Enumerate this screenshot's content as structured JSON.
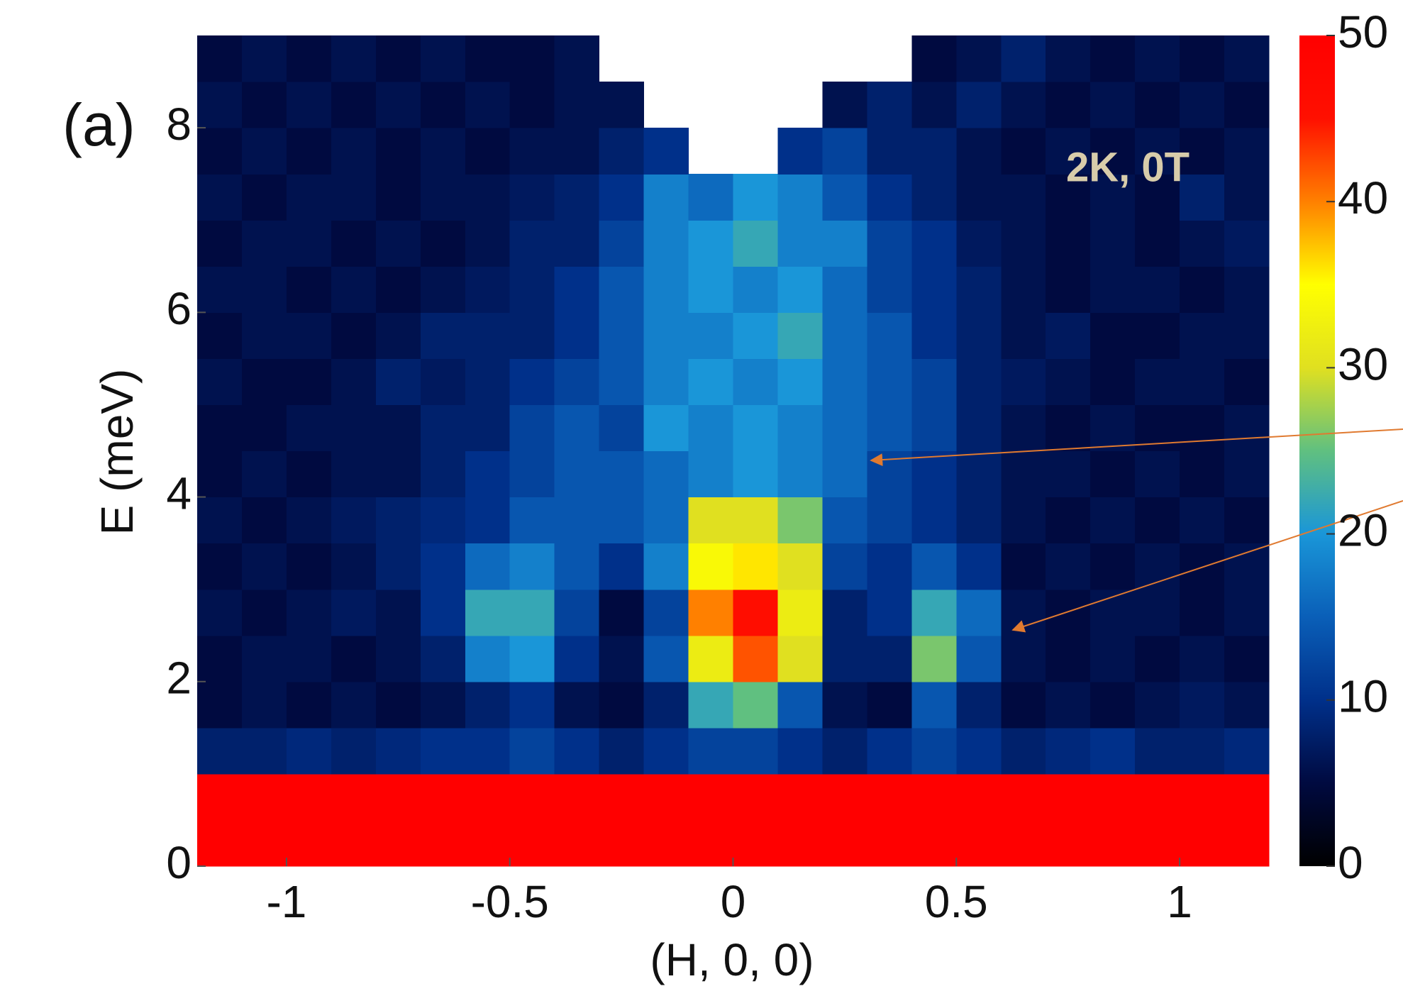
{
  "chart_data": {
    "type": "heatmap",
    "panel_label": "(a)",
    "annotation": "2K, 0T",
    "annotation_color": "#d8ccaa",
    "xlabel": "(H, 0, 0)",
    "ylabel": "E (meV)",
    "xlim": [
      -1.2,
      1.2
    ],
    "ylim": [
      0,
      9
    ],
    "xticks": [
      -1,
      -0.5,
      0,
      0.5,
      1
    ],
    "yticks": [
      0,
      2,
      4,
      6,
      8
    ],
    "zlim": [
      0,
      50
    ],
    "colorbar_ticks": [
      0,
      10,
      20,
      30,
      40,
      50
    ],
    "colormap": [
      "#000000",
      "#000a40",
      "#00308a",
      "#0a5fb8",
      "#1a96d8",
      "#60c080",
      "#e0e020",
      "#ffff00",
      "#ff8000",
      "#ff1000",
      "#ff0000"
    ],
    "x": [
      -1.15,
      -1.05,
      -0.95,
      -0.85,
      -0.75,
      -0.65,
      -0.55,
      -0.45,
      -0.35,
      -0.25,
      -0.15,
      -0.05,
      0.05,
      0.15,
      0.25,
      0.35,
      0.45,
      0.55,
      0.65,
      0.75,
      0.85,
      0.95,
      1.05,
      1.15
    ],
    "y": [
      0.25,
      0.75,
      1.25,
      1.75,
      2.25,
      2.75,
      3.25,
      3.75,
      4.25,
      4.75,
      5.25,
      5.75,
      6.25,
      6.75,
      7.25,
      7.75,
      8.25,
      8.75
    ],
    "z": [
      [
        50,
        50,
        50,
        50,
        50,
        50,
        50,
        50,
        50,
        50,
        50,
        50,
        50,
        50,
        50,
        50,
        50,
        50,
        50,
        50,
        50,
        50,
        50,
        50
      ],
      [
        50,
        50,
        50,
        50,
        50,
        50,
        50,
        50,
        50,
        50,
        50,
        50,
        50,
        50,
        50,
        50,
        50,
        50,
        50,
        50,
        50,
        50,
        50,
        50
      ],
      [
        8,
        8,
        9,
        8,
        9,
        10,
        10,
        12,
        10,
        8,
        10,
        12,
        12,
        10,
        8,
        10,
        12,
        10,
        8,
        9,
        10,
        8,
        8,
        9
      ],
      [
        5,
        6,
        5,
        6,
        5,
        6,
        8,
        10,
        6,
        5,
        8,
        22,
        25,
        14,
        6,
        5,
        14,
        8,
        5,
        6,
        5,
        6,
        7,
        6
      ],
      [
        5,
        6,
        6,
        5,
        6,
        8,
        18,
        20,
        10,
        6,
        14,
        32,
        42,
        30,
        8,
        8,
        26,
        14,
        6,
        5,
        6,
        5,
        6,
        5
      ],
      [
        6,
        5,
        6,
        7,
        6,
        10,
        22,
        22,
        12,
        5,
        12,
        40,
        46,
        32,
        8,
        10,
        22,
        16,
        6,
        5,
        6,
        6,
        5,
        6
      ],
      [
        5,
        6,
        5,
        6,
        8,
        10,
        16,
        18,
        14,
        10,
        18,
        34,
        36,
        30,
        12,
        10,
        14,
        10,
        5,
        6,
        5,
        6,
        5,
        6
      ],
      [
        6,
        5,
        6,
        7,
        8,
        9,
        10,
        14,
        14,
        14,
        16,
        30,
        30,
        26,
        14,
        12,
        10,
        8,
        6,
        5,
        6,
        5,
        6,
        5
      ],
      [
        5,
        6,
        5,
        6,
        6,
        8,
        10,
        12,
        14,
        14,
        16,
        18,
        20,
        18,
        16,
        12,
        10,
        8,
        6,
        6,
        5,
        6,
        5,
        6
      ],
      [
        5,
        5,
        6,
        6,
        6,
        8,
        8,
        12,
        14,
        12,
        20,
        18,
        20,
        18,
        16,
        14,
        12,
        8,
        6,
        5,
        6,
        5,
        5,
        6
      ],
      [
        6,
        5,
        5,
        6,
        8,
        7,
        8,
        10,
        12,
        14,
        18,
        20,
        18,
        20,
        16,
        14,
        12,
        8,
        7,
        6,
        5,
        6,
        6,
        5
      ],
      [
        5,
        6,
        6,
        5,
        6,
        8,
        8,
        8,
        10,
        14,
        18,
        18,
        20,
        22,
        16,
        14,
        10,
        8,
        6,
        7,
        5,
        5,
        6,
        6
      ],
      [
        6,
        6,
        5,
        6,
        5,
        6,
        7,
        8,
        10,
        14,
        18,
        20,
        18,
        20,
        16,
        12,
        10,
        8,
        6,
        5,
        6,
        6,
        5,
        6
      ],
      [
        5,
        6,
        6,
        5,
        6,
        5,
        6,
        8,
        8,
        12,
        18,
        20,
        22,
        18,
        18,
        12,
        10,
        7,
        6,
        5,
        6,
        5,
        6,
        7
      ],
      [
        6,
        5,
        6,
        6,
        5,
        6,
        6,
        7,
        8,
        10,
        18,
        16,
        20,
        18,
        14,
        10,
        8,
        6,
        6,
        5,
        6,
        5,
        8,
        6
      ],
      [
        5,
        6,
        5,
        6,
        5,
        6,
        5,
        6,
        6,
        8,
        10,
        null,
        null,
        10,
        12,
        8,
        8,
        6,
        5,
        6,
        5,
        6,
        5,
        6
      ],
      [
        6,
        5,
        6,
        5,
        6,
        5,
        6,
        5,
        6,
        6,
        null,
        null,
        null,
        null,
        6,
        8,
        6,
        8,
        6,
        5,
        6,
        5,
        6,
        5
      ],
      [
        5,
        6,
        5,
        6,
        5,
        6,
        5,
        5,
        6,
        null,
        null,
        null,
        null,
        null,
        null,
        null,
        5,
        6,
        8,
        6,
        5,
        6,
        5,
        6
      ]
    ]
  }
}
